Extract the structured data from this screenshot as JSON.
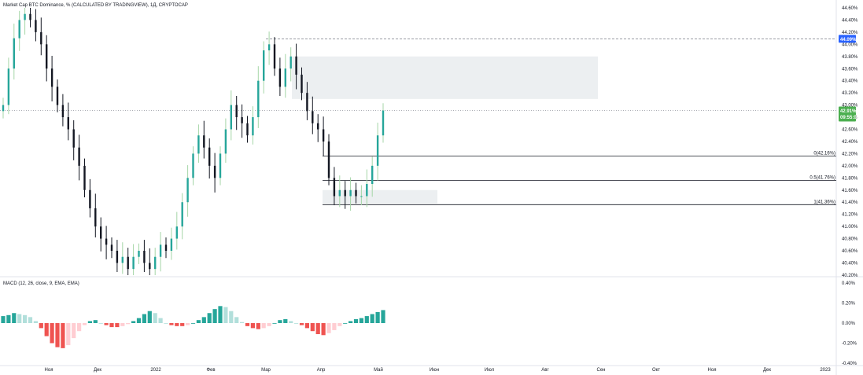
{
  "header": {
    "main_title": "Market Cap BTC Dominance, % (CALCULATED BY TRADINGVIEW), 1Д, CRYPTOCAP",
    "macd_title": "MACD (12, 26, close, 9, EMA, EMA)"
  },
  "price_axis": {
    "ticks": [
      "44.60%",
      "44.40%",
      "44.20%",
      "44.00%",
      "43.80%",
      "43.60%",
      "43.40%",
      "43.20%",
      "43.00%",
      "42.80%",
      "42.60%",
      "42.40%",
      "42.20%",
      "42.00%",
      "41.80%",
      "41.60%",
      "41.40%",
      "41.20%",
      "41.00%",
      "40.80%",
      "40.60%",
      "40.40%",
      "40.20%"
    ],
    "tick_values": [
      44.6,
      44.4,
      44.2,
      44.0,
      43.8,
      43.6,
      43.4,
      43.2,
      43.0,
      42.8,
      42.6,
      42.4,
      42.2,
      42.0,
      41.8,
      41.6,
      41.4,
      41.2,
      41.0,
      40.8,
      40.6,
      40.4,
      40.2
    ],
    "high_badge": "44.09%",
    "high_value": 44.09,
    "current_badge": "42.91%",
    "current_value": 42.91,
    "countdown": "09:55:08"
  },
  "macd_axis": {
    "ticks": [
      "0.40%",
      "0.20%",
      "0.00%",
      "-0.20%",
      "-0.40%"
    ],
    "tick_values": [
      0.4,
      0.2,
      0.0,
      -0.2,
      -0.4
    ]
  },
  "time_axis": {
    "labels": [
      "Ноя",
      "Дек",
      "2022",
      "Фев",
      "Мар",
      "Апр",
      "Май",
      "Июн",
      "Июл",
      "Авг",
      "Сен",
      "Окт",
      "Ноя",
      "Дек",
      "2023"
    ]
  },
  "fib_levels": [
    {
      "label": "0(42.16%)",
      "value": 42.16
    },
    {
      "label": "0.5(41.76%)",
      "value": 41.76
    },
    {
      "label": "1(41.36%)",
      "value": 41.36
    }
  ],
  "colors": {
    "up": "#26a69a",
    "up_wick": "#a5d6a7",
    "down": "#131722",
    "macd_pos_strong": "#26a69a",
    "macd_pos_weak": "#b2dfdb",
    "macd_neg_strong": "#ef5350",
    "macd_neg_weak": "#ffcdd2",
    "current_badge": "#4caf50",
    "high_badge": "#2962ff",
    "zone": "#eceff1"
  },
  "chart_data": {
    "type": "candlestick",
    "title": "Market Cap BTC Dominance, % (CALCULATED BY TRADINGVIEW), 1Д, CRYPTOCAP",
    "ylim": [
      40.2,
      44.6
    ],
    "x_labels": [
      "Ноя",
      "Дек",
      "2022",
      "Фев",
      "Мар",
      "Апр",
      "Май",
      "Июн",
      "Июл",
      "Авг",
      "Сен",
      "Окт",
      "Ноя",
      "Дек",
      "2023"
    ],
    "close_series": [
      43.0,
      43.6,
      44.1,
      44.4,
      44.5,
      44.4,
      44.2,
      44.0,
      43.6,
      43.3,
      43.0,
      42.8,
      42.6,
      42.3,
      42.0,
      41.6,
      41.3,
      41.0,
      40.8,
      40.7,
      40.6,
      40.4,
      40.5,
      40.3,
      40.5,
      40.6,
      40.4,
      40.3,
      40.5,
      40.7,
      40.6,
      40.8,
      41.0,
      41.4,
      41.8,
      42.2,
      42.5,
      42.3,
      42.0,
      41.8,
      42.2,
      42.6,
      43.0,
      42.8,
      42.7,
      42.5,
      42.8,
      43.4,
      43.9,
      44.0,
      43.6,
      43.3,
      43.6,
      43.8,
      43.5,
      43.2,
      42.9,
      42.7,
      42.6,
      42.4,
      41.8,
      41.5,
      41.6,
      41.5,
      41.6,
      41.5,
      41.5,
      41.7,
      42.0,
      42.5,
      42.91
    ],
    "macd_histogram": [
      0.07,
      0.08,
      0.1,
      0.09,
      0.08,
      0.06,
      0.02,
      -0.05,
      -0.13,
      -0.2,
      -0.24,
      -0.25,
      -0.22,
      -0.15,
      -0.08,
      -0.02,
      0.02,
      0.03,
      0.0,
      -0.02,
      -0.04,
      -0.04,
      -0.03,
      -0.01,
      0.02,
      0.05,
      0.09,
      0.12,
      0.1,
      0.05,
      0.0,
      -0.02,
      -0.03,
      -0.03,
      -0.02,
      0.0,
      0.03,
      0.06,
      0.1,
      0.14,
      0.17,
      0.16,
      0.12,
      0.06,
      0.01,
      -0.03,
      -0.05,
      -0.06,
      -0.05,
      -0.03,
      0.0,
      0.03,
      0.04,
      0.02,
      0.0,
      -0.02,
      -0.05,
      -0.08,
      -0.11,
      -0.12,
      -0.1,
      -0.07,
      -0.03,
      0.0,
      0.02,
      0.04,
      0.05,
      0.07,
      0.09,
      0.11,
      0.13
    ],
    "macd_ylim": [
      -0.4,
      0.4
    ]
  }
}
